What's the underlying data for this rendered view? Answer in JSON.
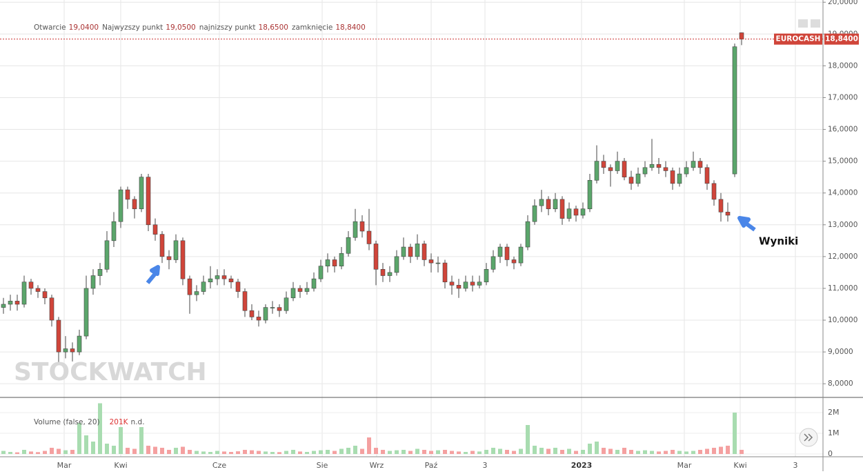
{
  "chart_data": {
    "type": "candlestick",
    "header": {
      "labels": [
        "Otwarcie",
        "Najwyzszy punkt",
        "najnizszy punkt",
        "zamknięcie"
      ],
      "values": [
        19.04,
        19.05,
        18.65,
        18.84
      ],
      "value_labels": [
        "19,0400",
        "19,0500",
        "18,6500",
        "18,8400"
      ]
    },
    "ticker": "EUROCASH",
    "last_price": {
      "value": 18.84,
      "label": "18,8400"
    },
    "annotation": "Wyniki",
    "watermark": "STOCKWATCH",
    "xlim": [
      0,
      119.3
    ],
    "xticks": [
      {
        "value": 9.3,
        "label": "Mar"
      },
      {
        "value": 17.5,
        "label": "Kwi"
      },
      {
        "value": 31.8,
        "label": "Cze"
      },
      {
        "value": 46.7,
        "label": "Sie"
      },
      {
        "value": 54.6,
        "label": "Wrz"
      },
      {
        "value": 62.5,
        "label": "Paź"
      },
      {
        "value": 70.3,
        "label": "3"
      },
      {
        "value": 84.3,
        "label": "2023"
      },
      {
        "value": 99.2,
        "label": "Mar"
      },
      {
        "value": 107.3,
        "label": "Kwi"
      },
      {
        "value": 115.3,
        "label": "3"
      }
    ],
    "ylim": [
      7.57,
      20.07
    ],
    "yticks": [
      {
        "value": 8,
        "label": "8,0000"
      },
      {
        "value": 9,
        "label": "9,0000"
      },
      {
        "value": 10,
        "label": "10,0000"
      },
      {
        "value": 11,
        "label": "11,0000"
      },
      {
        "value": 12,
        "label": "12,0000"
      },
      {
        "value": 13,
        "label": "13,0000"
      },
      {
        "value": 14,
        "label": "14,0000"
      },
      {
        "value": 15,
        "label": "15,0000"
      },
      {
        "value": 16,
        "label": "16,0000"
      },
      {
        "value": 17,
        "label": "17,0000"
      },
      {
        "value": 18,
        "label": "18,0000"
      },
      {
        "value": 19,
        "label": "19,0000"
      },
      {
        "value": 20,
        "label": "20,0000"
      }
    ],
    "y2lim": [
      -133000,
      2733000
    ],
    "y2ticks": [
      0,
      {
        "value": 1000000,
        "label": "1M"
      },
      {
        "value": 2000000,
        "label": "2M"
      }
    ],
    "grid": true,
    "up_color": "#5ba66b",
    "down_color": "#d0453a",
    "volume_up_color": "#a8dcb0",
    "volume_down_color": "#f4a0a0",
    "volume_legend": {
      "name": "Volume (false, 20)",
      "value": 201000,
      "value_label": "201K",
      "extra": "n.d."
    },
    "open": [
      10.4,
      10.5,
      10.6,
      10.5,
      11.2,
      11.0,
      10.9,
      10.7,
      10.0,
      9.0,
      9.1,
      9.0,
      9.5,
      11.0,
      11.4,
      11.6,
      12.5,
      13.1,
      14.1,
      13.8,
      13.5,
      14.5,
      13.0,
      12.7,
      12.0,
      11.9,
      12.5,
      11.3,
      10.8,
      10.9,
      11.2,
      11.3,
      11.4,
      11.3,
      11.2,
      10.9,
      10.3,
      10.1,
      10.0,
      10.4,
      10.4,
      10.3,
      10.7,
      11.0,
      10.9,
      11.0,
      11.3,
      11.7,
      11.9,
      11.7,
      12.1,
      12.6,
      13.1,
      12.8,
      12.4,
      11.6,
      11.4,
      11.5,
      12.0,
      12.3,
      12.0,
      12.4,
      11.9,
      11.8,
      11.8,
      11.2,
      11.1,
      11.0,
      11.2,
      11.1,
      11.2,
      11.6,
      12.0,
      12.3,
      11.9,
      11.8,
      12.3,
      13.1,
      13.6,
      13.8,
      13.5,
      13.8,
      13.2,
      13.5,
      13.3,
      13.5,
      14.4,
      15.0,
      14.8,
      14.7,
      15.0,
      14.5,
      14.3,
      14.6,
      14.8,
      14.9,
      14.8,
      14.7,
      14.3,
      14.6,
      14.8,
      15.0,
      14.8,
      14.3,
      13.8,
      13.4,
      14.6,
      19.04
    ],
    "high": [
      10.7,
      10.8,
      10.8,
      11.4,
      11.3,
      11.1,
      11.0,
      10.8,
      10.1,
      9.5,
      9.3,
      9.7,
      11.4,
      11.6,
      11.8,
      12.8,
      13.4,
      14.2,
      14.2,
      13.9,
      14.6,
      14.6,
      13.2,
      12.8,
      12.2,
      12.7,
      12.6,
      11.4,
      11.1,
      11.4,
      11.7,
      11.6,
      11.6,
      11.4,
      11.3,
      11.0,
      10.5,
      10.3,
      10.5,
      10.6,
      10.5,
      10.9,
      11.2,
      11.1,
      11.2,
      11.5,
      11.9,
      12.1,
      12.0,
      12.3,
      12.8,
      13.5,
      13.3,
      13.5,
      12.5,
      11.8,
      11.7,
      12.2,
      12.6,
      12.4,
      12.7,
      12.5,
      12.1,
      12.0,
      11.9,
      11.4,
      11.3,
      11.4,
      11.4,
      11.4,
      11.8,
      12.2,
      12.4,
      12.4,
      12.0,
      12.4,
      13.3,
      13.8,
      14.1,
      13.9,
      14.0,
      13.9,
      13.7,
      13.6,
      13.7,
      14.6,
      15.5,
      15.2,
      14.9,
      15.3,
      15.1,
      14.7,
      14.8,
      15.0,
      15.7,
      15.1,
      15.0,
      14.8,
      14.8,
      15.0,
      15.3,
      15.1,
      14.9,
      14.4,
      14.0,
      13.7,
      18.7,
      19.05
    ],
    "low": [
      10.2,
      10.3,
      10.3,
      10.4,
      10.8,
      10.7,
      10.5,
      9.8,
      8.6,
      8.8,
      8.7,
      8.9,
      9.4,
      10.8,
      11.1,
      11.5,
      12.3,
      12.9,
      13.5,
      13.2,
      13.4,
      12.8,
      12.5,
      11.8,
      11.6,
      11.8,
      11.1,
      10.2,
      10.6,
      10.8,
      11.0,
      11.1,
      11.1,
      11.0,
      10.7,
      10.1,
      10.0,
      9.8,
      9.9,
      10.2,
      10.1,
      10.2,
      10.6,
      10.7,
      10.8,
      10.9,
      11.2,
      11.5,
      11.5,
      11.6,
      12.0,
      12.5,
      12.6,
      12.2,
      11.1,
      11.2,
      11.2,
      11.4,
      11.9,
      11.8,
      11.9,
      11.7,
      11.5,
      11.5,
      11.0,
      10.8,
      10.7,
      10.9,
      10.9,
      11.0,
      11.1,
      11.5,
      11.8,
      11.7,
      11.6,
      11.7,
      12.2,
      13.0,
      13.4,
      13.3,
      13.4,
      13.0,
      13.1,
      13.1,
      13.2,
      13.4,
      14.3,
      14.6,
      14.2,
      14.6,
      14.4,
      14.1,
      14.2,
      14.5,
      14.7,
      14.6,
      14.5,
      14.1,
      14.2,
      14.5,
      14.7,
      14.6,
      14.1,
      13.6,
      13.1,
      13.1,
      14.5,
      18.65
    ],
    "close": [
      10.5,
      10.6,
      10.5,
      11.2,
      11.0,
      10.9,
      10.7,
      10.0,
      9.0,
      9.1,
      9.0,
      9.5,
      11.0,
      11.4,
      11.6,
      12.5,
      13.1,
      14.1,
      13.8,
      13.5,
      14.5,
      13.0,
      12.7,
      12.0,
      11.9,
      12.5,
      11.3,
      10.8,
      10.9,
      11.2,
      11.3,
      11.4,
      11.3,
      11.2,
      10.9,
      10.3,
      10.1,
      10.0,
      10.4,
      10.4,
      10.3,
      10.7,
      11.0,
      10.9,
      11.0,
      11.3,
      11.7,
      11.9,
      11.7,
      12.1,
      12.6,
      13.1,
      12.8,
      12.4,
      11.6,
      11.4,
      11.5,
      12.0,
      12.3,
      12.0,
      12.4,
      11.9,
      11.8,
      11.8,
      11.2,
      11.1,
      11.0,
      11.2,
      11.1,
      11.2,
      11.6,
      12.0,
      12.3,
      11.9,
      11.8,
      12.3,
      13.1,
      13.6,
      13.8,
      13.5,
      13.8,
      13.2,
      13.5,
      13.3,
      13.5,
      14.4,
      15.0,
      14.8,
      14.7,
      15.0,
      14.5,
      14.3,
      14.6,
      14.8,
      14.9,
      14.8,
      14.7,
      14.3,
      14.6,
      14.8,
      15.0,
      14.8,
      14.3,
      13.8,
      13.4,
      13.3,
      18.6,
      18.84
    ],
    "volume": [
      150000,
      100000,
      80000,
      200000,
      120000,
      90000,
      150000,
      300000,
      250000,
      180000,
      200000,
      1500000,
      900000,
      600000,
      2450000,
      500000,
      400000,
      1300000,
      300000,
      250000,
      1300000,
      400000,
      350000,
      300000,
      200000,
      300000,
      350000,
      200000,
      150000,
      120000,
      100000,
      150000,
      120000,
      100000,
      130000,
      200000,
      180000,
      150000,
      120000,
      100000,
      90000,
      150000,
      200000,
      120000,
      100000,
      150000,
      180000,
      200000,
      150000,
      250000,
      300000,
      400000,
      250000,
      800000,
      300000,
      200000,
      150000,
      180000,
      200000,
      150000,
      250000,
      200000,
      150000,
      180000,
      200000,
      150000,
      120000,
      100000,
      150000,
      120000,
      200000,
      300000,
      250000,
      200000,
      150000,
      250000,
      1400000,
      400000,
      300000,
      250000,
      300000,
      200000,
      250000,
      150000,
      200000,
      500000,
      600000,
      300000,
      250000,
      200000,
      300000,
      200000,
      150000,
      180000,
      150000,
      120000,
      150000,
      200000,
      150000,
      120000,
      150000,
      200000,
      250000,
      300000,
      350000,
      400000,
      2000000,
      201000
    ]
  }
}
